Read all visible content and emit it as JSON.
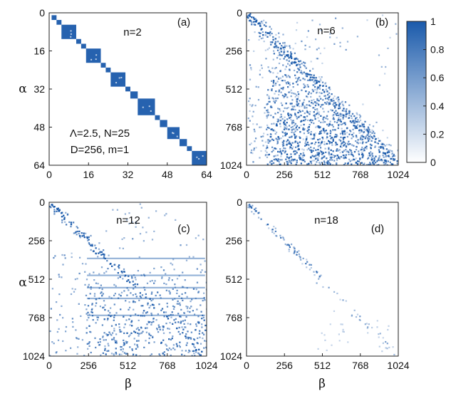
{
  "chart_data": [
    {
      "type": "heatmap",
      "panel_label": "(a)",
      "annotation": "n=2",
      "params_line1": "Λ=2.5, N=25",
      "params_line2": "D=256, m=1",
      "xlabel": "",
      "ylabel": "α",
      "xlim": [
        0,
        64
      ],
      "ylim": [
        64,
        0
      ],
      "xticks": [
        "0",
        "16",
        "32",
        "48",
        "64"
      ],
      "yticks": [
        "0",
        "16",
        "32",
        "48",
        "64"
      ],
      "pattern": "block-diagonal",
      "blocks": [
        [
          1,
          2
        ],
        [
          3,
          4
        ],
        [
          5,
          10
        ],
        [
          11,
          12
        ],
        [
          13,
          14
        ],
        [
          15,
          20
        ],
        [
          21,
          22
        ],
        [
          23,
          24
        ],
        [
          25,
          30
        ],
        [
          31,
          32
        ],
        [
          33,
          35
        ],
        [
          36,
          42
        ],
        [
          43,
          44
        ],
        [
          45,
          47
        ],
        [
          48,
          52
        ],
        [
          53,
          55
        ],
        [
          56,
          57
        ],
        [
          58,
          63
        ]
      ]
    },
    {
      "type": "heatmap",
      "panel_label": "(b)",
      "annotation": "n=6",
      "xlabel": "",
      "ylabel": "",
      "xlim": [
        0,
        1024
      ],
      "ylim": [
        1024,
        0
      ],
      "xticks": [
        "0",
        "256",
        "512",
        "768",
        "1024"
      ],
      "yticks": [
        "0",
        "256",
        "512",
        "768",
        "1024"
      ],
      "pattern": "broad lower triangle",
      "colorbar": {
        "min": 0,
        "max": 1,
        "ticks": [
          "0",
          "0.2",
          "0.4",
          "0.6",
          "0.8",
          "1"
        ]
      }
    },
    {
      "type": "heatmap",
      "panel_label": "(c)",
      "annotation": "n=12",
      "xlabel": "β",
      "ylabel": "α",
      "xlim": [
        0,
        1024
      ],
      "ylim": [
        1024,
        0
      ],
      "xticks": [
        "0",
        "256",
        "512",
        "768",
        "1024"
      ],
      "yticks": [
        "0",
        "256",
        "512",
        "768",
        "1024"
      ],
      "pattern": "diagonal with dense lower-right region"
    },
    {
      "type": "heatmap",
      "panel_label": "(d)",
      "annotation": "n=18",
      "xlabel": "β",
      "ylabel": "",
      "xlim": [
        0,
        1024
      ],
      "ylim": [
        1024,
        0
      ],
      "xticks": [
        "0",
        "256",
        "512",
        "768",
        "1024"
      ],
      "yticks": [
        "0",
        "256",
        "512",
        "768",
        "1024"
      ],
      "pattern": "narrow diagonal with scattered clusters"
    }
  ],
  "colors": {
    "max": "#1a5aab",
    "min": "#ffffff"
  }
}
